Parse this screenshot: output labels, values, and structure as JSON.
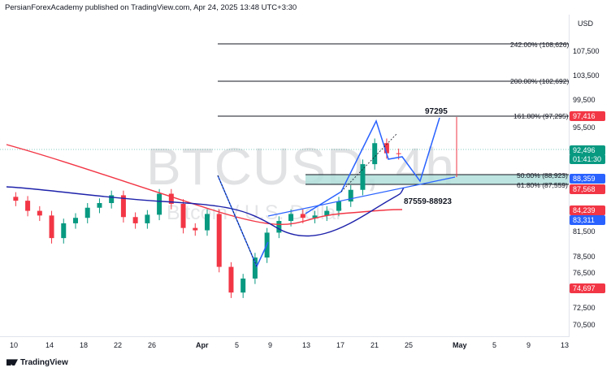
{
  "header": {
    "publisher_line": "PersianForexAcademy published on TradingView.com, Apr 24, 2025 13:48 UTC+3:30"
  },
  "symbol_watermark": "BTCUSD, 4h",
  "watermark_sub": "Bitcoin / U.S. Dollar",
  "price_axis": {
    "currency": "USD",
    "ticks": [
      "107,500",
      "103,500",
      "99,500",
      "95,500",
      "81,500",
      "78,500",
      "76,500",
      "72,500",
      "70,500"
    ],
    "tags": [
      {
        "label": "97,416",
        "color": "#f23645"
      },
      {
        "label": "92,496",
        "color": "#089981"
      },
      {
        "label": "01:41:30",
        "color": "#089981"
      },
      {
        "label": "88,359",
        "color": "#2962ff"
      },
      {
        "label": "87,568",
        "color": "#f23645"
      },
      {
        "label": "84,239",
        "color": "#f23645"
      },
      {
        "label": "83,311",
        "color": "#2962ff"
      },
      {
        "label": "74,697",
        "color": "#f23645"
      }
    ]
  },
  "time_axis": [
    "10",
    "14",
    "18",
    "22",
    "26",
    "Apr",
    "5",
    "9",
    "13",
    "17",
    "21",
    "25",
    "May",
    "5",
    "9",
    "13"
  ],
  "fib_levels": [
    "242.00% (108,626)",
    "200.00% (102,692)",
    "161.80% (97,295)",
    "50.00% (88,923)",
    "61.80% (87,559)"
  ],
  "annotations": {
    "target": "97295",
    "zone": "87559-88923"
  },
  "footer": {
    "brand": "TradingView"
  },
  "chart_data": {
    "type": "candlestick",
    "title": "BTCUSD, 4h",
    "ylabel": "USD",
    "ylim": [
      69500,
      110000
    ],
    "series": [
      {
        "name": "price",
        "values": [
          86500,
          85200,
          84600,
          81700,
          83600,
          84300,
          85600,
          86200,
          87200,
          84400,
          83600,
          84700,
          87400,
          86100,
          83000,
          82700,
          84800,
          78000,
          74700,
          76500,
          79200,
          82400,
          83900,
          84800,
          84300,
          84600,
          85200,
          86400,
          87900,
          91200,
          93900,
          92600,
          92496
        ]
      }
    ],
    "grid": true
  }
}
